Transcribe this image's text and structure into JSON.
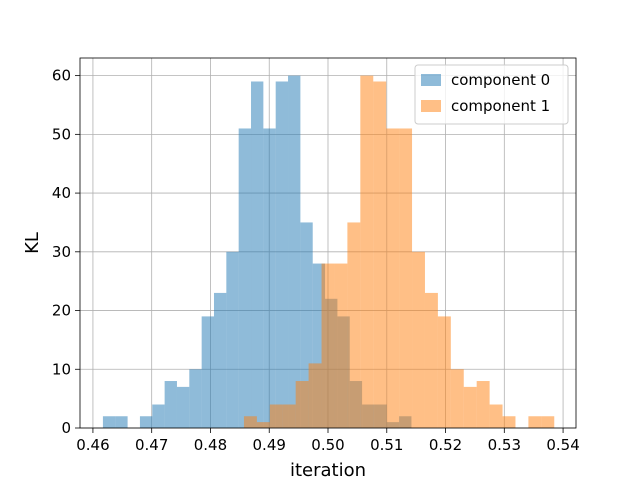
{
  "chart_data": {
    "type": "bar",
    "subtype": "histogram",
    "title": "",
    "xlabel": "iteration",
    "ylabel": "KL",
    "xlim": [
      0.4578,
      0.5422
    ],
    "ylim": [
      0,
      63
    ],
    "xticks": [
      0.46,
      0.47,
      0.48,
      0.49,
      0.5,
      0.51,
      0.52,
      0.53,
      0.54
    ],
    "xtick_labels": [
      "0.46",
      "0.47",
      "0.48",
      "0.49",
      "0.50",
      "0.51",
      "0.52",
      "0.53",
      "0.54"
    ],
    "yticks": [
      0,
      10,
      20,
      30,
      40,
      50,
      60
    ],
    "ytick_labels": [
      "0",
      "10",
      "20",
      "30",
      "40",
      "50",
      "60"
    ],
    "grid": true,
    "legend_position": "top-right",
    "series": [
      {
        "name": "component 0",
        "color": "#1f77b4",
        "alpha": 0.5,
        "bins": [
          {
            "x0": 0.4617,
            "x1": 0.4638,
            "count": 2
          },
          {
            "x0": 0.4638,
            "x1": 0.4659,
            "count": 2
          },
          {
            "x0": 0.4659,
            "x1": 0.468,
            "count": 0
          },
          {
            "x0": 0.468,
            "x1": 0.4701,
            "count": 2
          },
          {
            "x0": 0.4701,
            "x1": 0.4722,
            "count": 4
          },
          {
            "x0": 0.4722,
            "x1": 0.4743,
            "count": 8
          },
          {
            "x0": 0.4743,
            "x1": 0.4764,
            "count": 7
          },
          {
            "x0": 0.4764,
            "x1": 0.4785,
            "count": 10
          },
          {
            "x0": 0.4785,
            "x1": 0.4806,
            "count": 19
          },
          {
            "x0": 0.4806,
            "x1": 0.4827,
            "count": 23
          },
          {
            "x0": 0.4827,
            "x1": 0.4848,
            "count": 30
          },
          {
            "x0": 0.4848,
            "x1": 0.4869,
            "count": 51
          },
          {
            "x0": 0.4869,
            "x1": 0.489,
            "count": 59
          },
          {
            "x0": 0.489,
            "x1": 0.4911,
            "count": 51
          },
          {
            "x0": 0.4911,
            "x1": 0.4932,
            "count": 59
          },
          {
            "x0": 0.4932,
            "x1": 0.4953,
            "count": 60
          },
          {
            "x0": 0.4953,
            "x1": 0.4974,
            "count": 35
          },
          {
            "x0": 0.4974,
            "x1": 0.4995,
            "count": 28
          },
          {
            "x0": 0.4995,
            "x1": 0.5016,
            "count": 22
          },
          {
            "x0": 0.5016,
            "x1": 0.5037,
            "count": 19
          },
          {
            "x0": 0.5037,
            "x1": 0.5058,
            "count": 8
          },
          {
            "x0": 0.5058,
            "x1": 0.5079,
            "count": 4
          },
          {
            "x0": 0.5079,
            "x1": 0.51,
            "count": 4
          },
          {
            "x0": 0.51,
            "x1": 0.5121,
            "count": 1
          },
          {
            "x0": 0.5121,
            "x1": 0.5142,
            "count": 2
          }
        ]
      },
      {
        "name": "component 1",
        "color": "#ff7f0e",
        "alpha": 0.5,
        "bins": [
          {
            "x0": 0.4857,
            "x1": 0.4879,
            "count": 2
          },
          {
            "x0": 0.4879,
            "x1": 0.4901,
            "count": 1
          },
          {
            "x0": 0.4901,
            "x1": 0.4923,
            "count": 4
          },
          {
            "x0": 0.4923,
            "x1": 0.4945,
            "count": 4
          },
          {
            "x0": 0.4945,
            "x1": 0.4967,
            "count": 8
          },
          {
            "x0": 0.4967,
            "x1": 0.4989,
            "count": 11
          },
          {
            "x0": 0.4989,
            "x1": 0.5011,
            "count": 28
          },
          {
            "x0": 0.5011,
            "x1": 0.5033,
            "count": 28
          },
          {
            "x0": 0.5033,
            "x1": 0.5055,
            "count": 35
          },
          {
            "x0": 0.5055,
            "x1": 0.5077,
            "count": 60
          },
          {
            "x0": 0.5077,
            "x1": 0.5099,
            "count": 59
          },
          {
            "x0": 0.5099,
            "x1": 0.5121,
            "count": 51
          },
          {
            "x0": 0.5121,
            "x1": 0.5143,
            "count": 51
          },
          {
            "x0": 0.5143,
            "x1": 0.5165,
            "count": 30
          },
          {
            "x0": 0.5165,
            "x1": 0.5187,
            "count": 23
          },
          {
            "x0": 0.5187,
            "x1": 0.5209,
            "count": 19
          },
          {
            "x0": 0.5209,
            "x1": 0.5231,
            "count": 10
          },
          {
            "x0": 0.5231,
            "x1": 0.5253,
            "count": 7
          },
          {
            "x0": 0.5253,
            "x1": 0.5275,
            "count": 8
          },
          {
            "x0": 0.5275,
            "x1": 0.5297,
            "count": 4
          },
          {
            "x0": 0.5297,
            "x1": 0.5319,
            "count": 2
          },
          {
            "x0": 0.5319,
            "x1": 0.5341,
            "count": 0
          },
          {
            "x0": 0.5341,
            "x1": 0.5363,
            "count": 2
          },
          {
            "x0": 0.5363,
            "x1": 0.5385,
            "count": 2
          }
        ]
      }
    ]
  }
}
